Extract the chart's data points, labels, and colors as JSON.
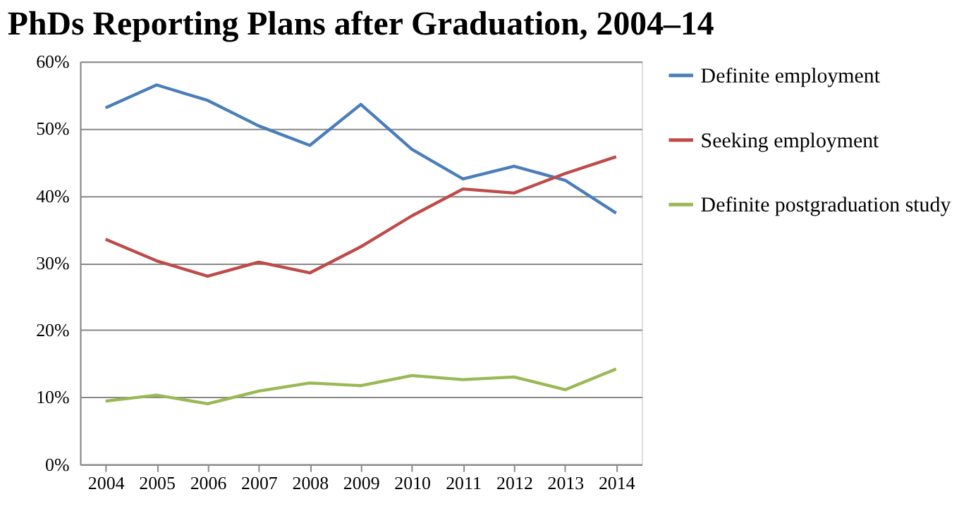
{
  "chart_data": {
    "type": "line",
    "title": "PhDs Reporting Plans after Graduation, 2004–14",
    "categories": [
      "2004",
      "2005",
      "2006",
      "2007",
      "2008",
      "2009",
      "2010",
      "2011",
      "2012",
      "2013",
      "2014"
    ],
    "series": [
      {
        "name": "Definite employment",
        "color": "#4a7ebb",
        "values": [
          53.1,
          56.5,
          54.2,
          50.4,
          47.5,
          53.6,
          46.9,
          42.5,
          44.4,
          42.3,
          37.4
        ]
      },
      {
        "name": "Seeking employment",
        "color": "#be4b48",
        "values": [
          33.5,
          30.3,
          28.0,
          30.1,
          28.5,
          32.4,
          37.0,
          41.0,
          40.4,
          43.3,
          45.8
        ]
      },
      {
        "name": "Definite postgraduation study",
        "color": "#98b954",
        "values": [
          9.4,
          10.3,
          9.0,
          10.9,
          12.1,
          11.7,
          13.2,
          12.6,
          13.0,
          11.1,
          14.2
        ]
      }
    ],
    "ylim": [
      0,
      60
    ],
    "yticks": [
      {
        "value": 0,
        "label": "0%"
      },
      {
        "value": 10,
        "label": "10%"
      },
      {
        "value": 20,
        "label": "20%"
      },
      {
        "value": 30,
        "label": "30%"
      },
      {
        "value": 40,
        "label": "40%"
      },
      {
        "value": 50,
        "label": "50%"
      },
      {
        "value": 60,
        "label": "60%"
      }
    ],
    "grid": "y",
    "legend": "right",
    "marker": "none",
    "line_style": "solid"
  }
}
